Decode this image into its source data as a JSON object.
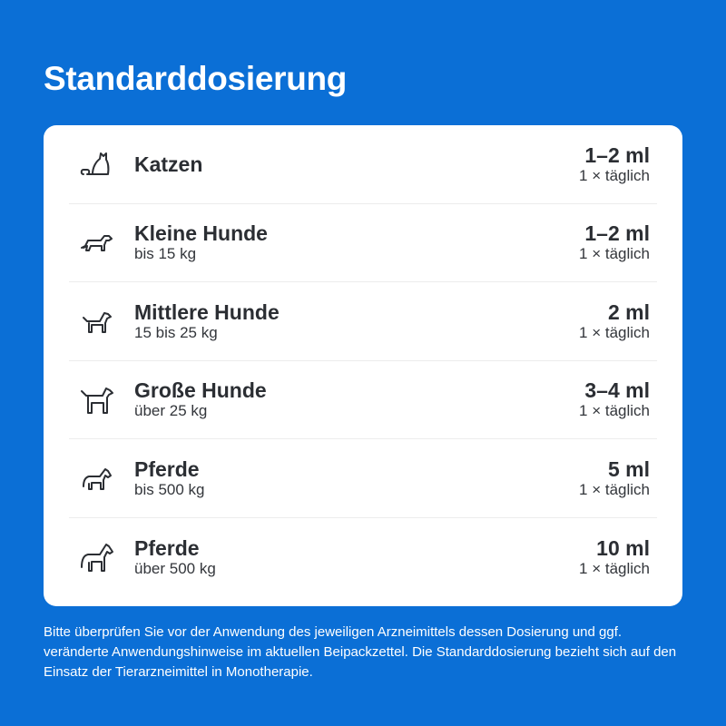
{
  "title": "Standarddosierung",
  "rows": [
    {
      "icon": "cat-icon",
      "name": "Katzen",
      "sub": "",
      "dose": "1–2 ml",
      "freq": "1 × täglich"
    },
    {
      "icon": "small-dog-icon",
      "name": "Kleine Hunde",
      "sub": "bis 15 kg",
      "dose": "1–2 ml",
      "freq": "1 × täglich"
    },
    {
      "icon": "medium-dog-icon",
      "name": "Mittlere Hunde",
      "sub": "15 bis 25 kg",
      "dose": "2 ml",
      "freq": "1 × täglich"
    },
    {
      "icon": "large-dog-icon",
      "name": "Große Hunde",
      "sub": "über 25 kg",
      "dose": "3–4 ml",
      "freq": "1 × täglich"
    },
    {
      "icon": "horse-icon",
      "name": "Pferde",
      "sub": "bis 500 kg",
      "dose": "5 ml",
      "freq": "1 × täglich"
    },
    {
      "icon": "large-horse-icon",
      "name": "Pferde",
      "sub": "über 500 kg",
      "dose": "10 ml",
      "freq": "1 × täglich"
    }
  ],
  "note": "Bitte überprüfen Sie vor der Anwendung des jeweiligen Arzneimittels dessen Dosierung und ggf. veränderte Anwendungshinweise im aktuellen Beipackzettel. Die Standarddosierung bezieht sich auf den Einsatz der Tierarzneimittel in Monotherapie.",
  "colors": {
    "background": "#0b6fd6",
    "card": "#ffffff",
    "text": "#2b2e33"
  }
}
